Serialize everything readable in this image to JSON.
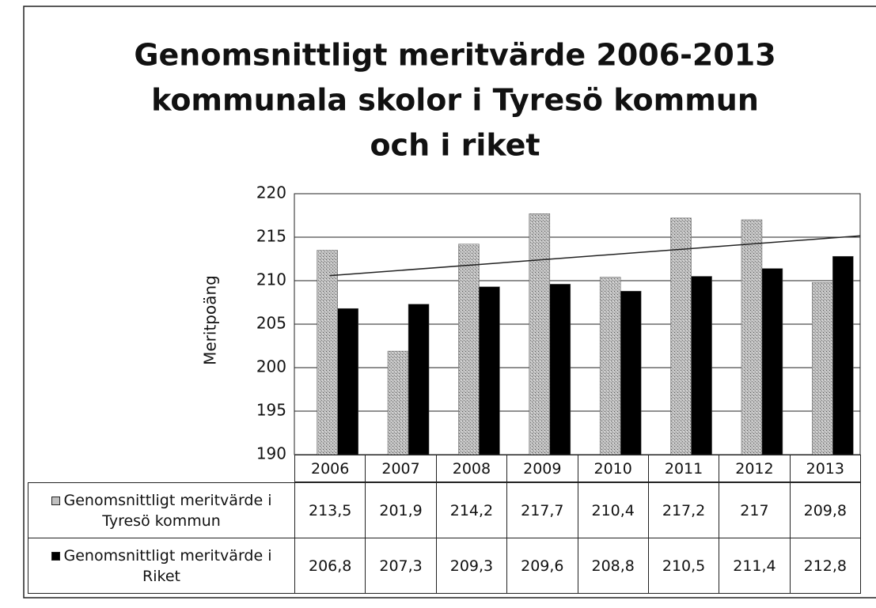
{
  "chart_data": {
    "type": "bar",
    "title": [
      "Genomsnittligt meritvärde 2006-2013",
      "kommunala skolor i Tyresö kommun",
      "och i riket"
    ],
    "ylabel": "Meritpoäng",
    "categories": [
      "2006",
      "2007",
      "2008",
      "2009",
      "2010",
      "2011",
      "2012",
      "2013"
    ],
    "series": [
      {
        "name": "Genomsnittligt meritvärde i Tyresö kommun",
        "color": "#c0c0c0",
        "trendline": true,
        "values": [
          213.5,
          201.9,
          214.2,
          217.7,
          210.4,
          217.2,
          217,
          209.8
        ],
        "value_labels": [
          "213,5",
          "201,9",
          "214,2",
          "217,7",
          "210,4",
          "217,2",
          "217",
          "209,8"
        ]
      },
      {
        "name": "Genomsnittligt meritvärde i Riket",
        "color": "#000000",
        "values": [
          206.8,
          207.3,
          209.3,
          209.6,
          208.8,
          210.5,
          211.4,
          212.8
        ],
        "value_labels": [
          "206,8",
          "207,3",
          "209,3",
          "209,6",
          "208,8",
          "210,5",
          "211,4",
          "212,8"
        ]
      }
    ],
    "ylim": [
      190,
      220
    ],
    "yticks": [
      190,
      195,
      200,
      205,
      210,
      215,
      220
    ],
    "grid": true
  }
}
